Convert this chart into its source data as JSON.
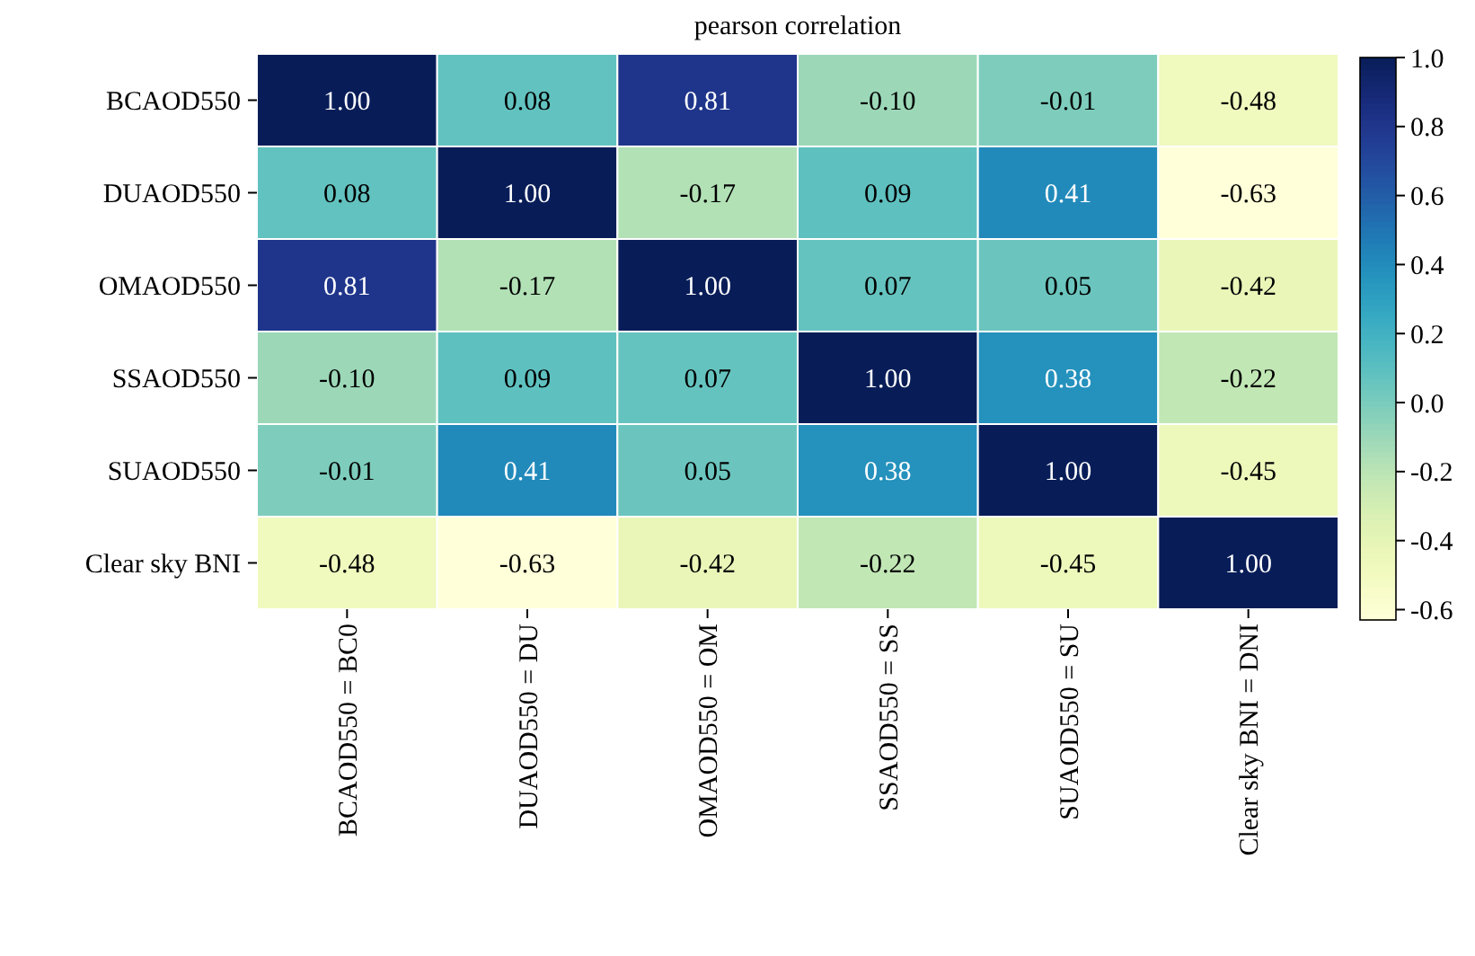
{
  "chart_data": {
    "type": "heatmap",
    "title": "pearson correlation",
    "categories": [
      "BCAOD550 = BC0",
      "DUAOD550 = DU",
      "OMAOD550 = OM",
      "SSAOD550 = SS",
      "SUAOD550 = SU",
      "Clear sky BNI = DNI"
    ],
    "y_categories": [
      "BCAOD550",
      "DUAOD550",
      "OMAOD550",
      "SSAOD550",
      "SUAOD550",
      "Clear sky BNI"
    ],
    "cells": [
      [
        1.0,
        0.08,
        0.81,
        -0.1,
        -0.01,
        -0.48
      ],
      [
        0.08,
        1.0,
        -0.17,
        0.09,
        0.41,
        -0.63
      ],
      [
        0.81,
        -0.17,
        1.0,
        0.07,
        0.05,
        -0.42
      ],
      [
        -0.1,
        0.09,
        0.07,
        1.0,
        0.38,
        -0.22
      ],
      [
        -0.01,
        0.41,
        0.05,
        0.38,
        1.0,
        -0.45
      ],
      [
        -0.48,
        -0.63,
        -0.42,
        -0.22,
        -0.45,
        1.0
      ]
    ],
    "cell_labels": [
      [
        "1.00",
        "0.08",
        "0.81",
        "-0.10",
        "-0.01",
        "-0.48"
      ],
      [
        "0.08",
        "1.00",
        "-0.17",
        "0.09",
        "0.41",
        "-0.63"
      ],
      [
        "0.81",
        "-0.17",
        "1.00",
        "0.07",
        "0.05",
        "-0.42"
      ],
      [
        "-0.10",
        "0.09",
        "0.07",
        "1.00",
        "0.38",
        "-0.22"
      ],
      [
        "-0.01",
        "0.41",
        "0.05",
        "0.38",
        "1.00",
        "-0.45"
      ],
      [
        "-0.48",
        "-0.63",
        "-0.42",
        "-0.22",
        "-0.45",
        "1.00"
      ]
    ],
    "clim": [
      -0.63,
      1.0
    ],
    "cticks": [
      {
        "value": -0.6,
        "label": "-0.6"
      },
      {
        "value": -0.4,
        "label": "-0.4"
      },
      {
        "value": -0.2,
        "label": "-0.2"
      },
      {
        "value": 0,
        "label": "0.0"
      },
      {
        "value": 0.2,
        "label": "0.2"
      },
      {
        "value": 0.4,
        "label": "0.4"
      },
      {
        "value": 0.6,
        "label": "0.6"
      },
      {
        "value": 0.8,
        "label": "0.8"
      },
      {
        "value": 1.0,
        "label": "1.0"
      }
    ]
  }
}
